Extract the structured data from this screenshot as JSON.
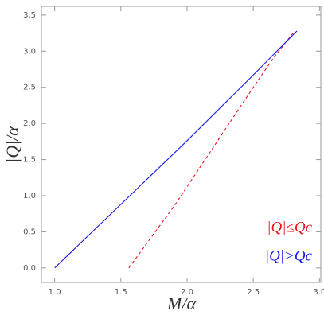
{
  "chart_data": {
    "type": "line",
    "xlabel": "M/α",
    "ylabel": "|Q|/α",
    "xlim": [
      0.9,
      3.01
    ],
    "ylim": [
      -0.2,
      3.62
    ],
    "xticks": [
      {
        "value": 1,
        "label": "1.0"
      },
      1.5,
      {
        "value": 2,
        "label": "2.0"
      },
      2.5,
      {
        "value": 3,
        "label": "3.0"
      }
    ],
    "yticks": [
      {
        "value": 0,
        "label": "0.0"
      },
      0.5,
      {
        "value": 1,
        "label": "1.0"
      },
      1.5,
      {
        "value": 2,
        "label": "2.0"
      },
      2.5,
      {
        "value": 3,
        "label": "3.0"
      },
      3.5
    ],
    "series": [
      {
        "name": "|Q|≤Qc",
        "color": "#e8141a",
        "dashed": true,
        "x": [
          1.56,
          1.7,
          1.9,
          2.1,
          2.3,
          2.5,
          2.65,
          2.8
        ],
        "values": [
          0,
          0.35,
          0.85,
          1.4,
          1.95,
          2.5,
          2.9,
          3.25
        ]
      },
      {
        "name": "|Q|>Qc",
        "color": "#1a1ae6",
        "dashed": false,
        "x": [
          1.0,
          1.5,
          2.0,
          2.5,
          2.83
        ],
        "values": [
          0,
          0.88,
          1.76,
          2.67,
          3.28
        ]
      }
    ]
  }
}
